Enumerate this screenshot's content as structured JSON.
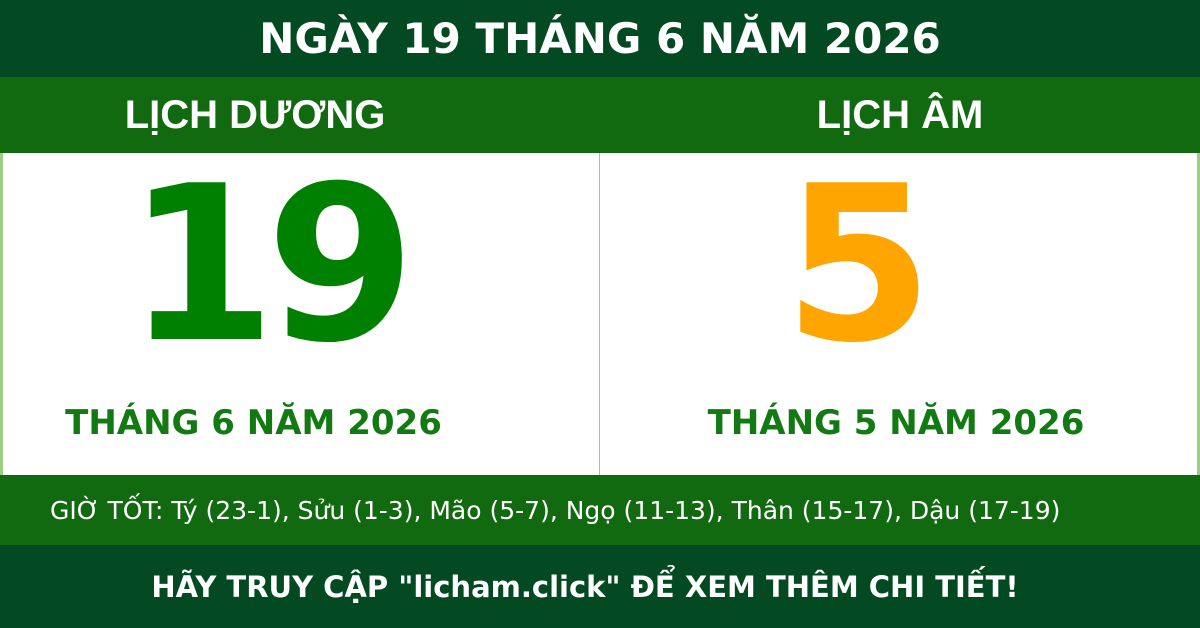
{
  "header": {
    "title": "NGÀY 19 THÁNG 6 NĂM 2026"
  },
  "solar": {
    "label": "LỊCH DƯƠNG",
    "day": "19",
    "month_year": "THÁNG 6 NĂM 2026"
  },
  "lunar": {
    "label": "LỊCH ÂM",
    "day": "5",
    "month_year": "THÁNG 5 NĂM 2026"
  },
  "good_hours": "GIỜ TỐT: Tý (23-1), Sửu (1-3), Mão (5-7), Ngọ (11-13), Thân (15-17), Dậu (17-19)",
  "footer": "HÃY TRUY CẬP \"licham.click\" ĐỂ XEM THÊM CHI TIẾT!",
  "colors": {
    "dark_green": "#034a22",
    "green_band": "#116a10",
    "solar_day": "#008000",
    "lunar_day": "#ffa500"
  }
}
